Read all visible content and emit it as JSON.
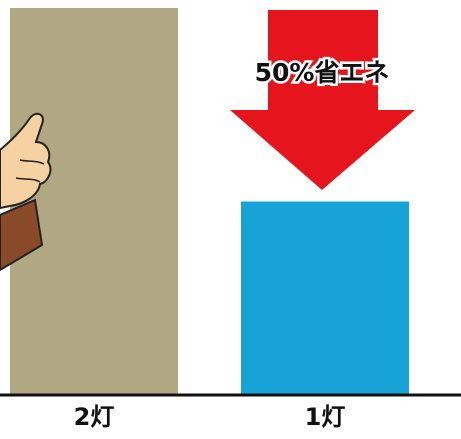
{
  "chart_data": {
    "type": "bar",
    "categories": [
      "2灯",
      "1灯"
    ],
    "values": [
      100,
      50
    ],
    "colors": [
      "#afa882",
      "#17a3d6"
    ],
    "ylim": [
      0,
      100
    ],
    "annotation": "50%省エネ"
  }
}
